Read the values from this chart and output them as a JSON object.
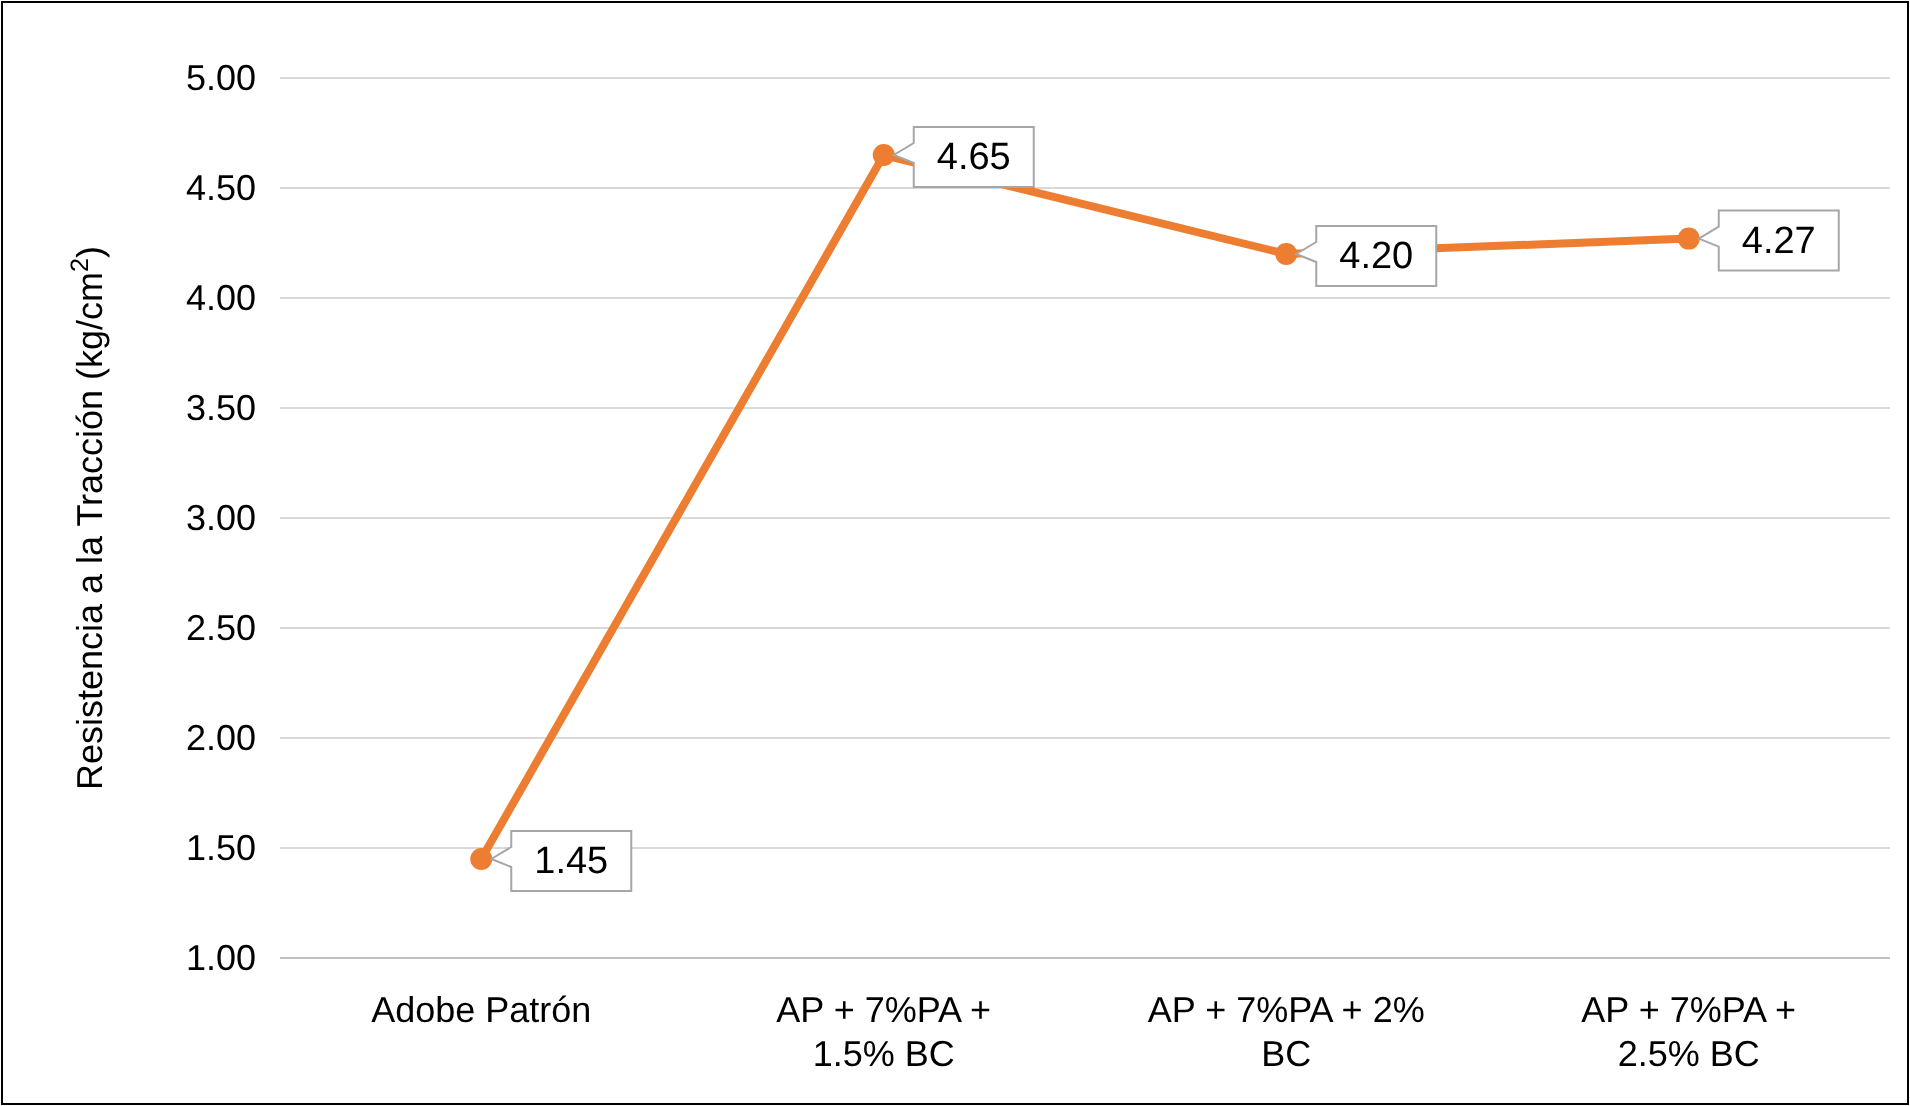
{
  "chart_data": {
    "type": "line",
    "ylabel": "Resistencia a la Tracción (kg/cm$^{2}$)",
    "categories": [
      "Adobe Patrón",
      "AP + 7%PA + 1.5% BC",
      "AP + 7%PA + 2% BC",
      "AP + 7%PA + 2.5% BC"
    ],
    "series": [
      {
        "color": "#ed7d31",
        "values": [
          1.45,
          4.65,
          4.2,
          4.27
        ],
        "value_labels": [
          "1.45",
          "4.65",
          "4.20",
          "4.27"
        ]
      }
    ],
    "ylim": [
      1.0,
      5.0
    ],
    "yticks": [
      {
        "value": 1,
        "label": "1.00"
      },
      {
        "value": 1.5,
        "label": "1.50"
      },
      {
        "value": 2,
        "label": "2.00"
      },
      {
        "value": 2.5,
        "label": "2.50"
      },
      {
        "value": 3,
        "label": "3.00"
      },
      {
        "value": 3.5,
        "label": "3.50"
      },
      {
        "value": 4,
        "label": "4.00"
      },
      {
        "value": 4.5,
        "label": "4.50"
      },
      {
        "value": 5,
        "label": "5.00"
      }
    ],
    "grid": "y",
    "marker": "circle",
    "line_style": "solid"
  }
}
